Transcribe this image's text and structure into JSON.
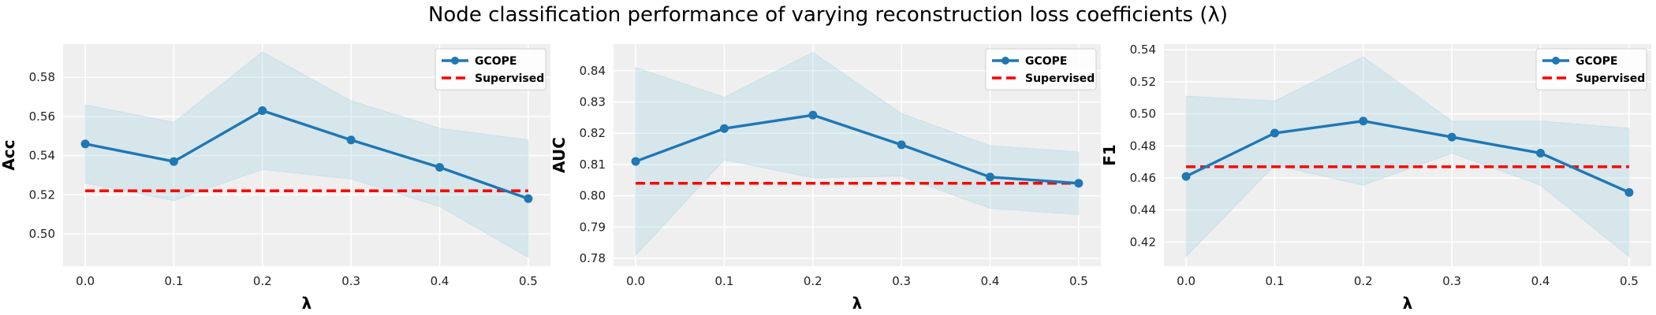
{
  "figure": {
    "title": "Node classification performance of varying reconstruction loss coefficients (λ)"
  },
  "colors": {
    "gcope": "#1f77b4",
    "supervised": "#ff0000",
    "band": "#add8e6",
    "plot_background": "#efefef"
  },
  "chart_data": [
    {
      "type": "line",
      "title": "",
      "xlabel": "λ",
      "ylabel": "Acc",
      "x": [
        0.0,
        0.1,
        0.2,
        0.3,
        0.4,
        0.5
      ],
      "xticks": [
        "0.0",
        "0.1",
        "0.2",
        "0.3",
        "0.4",
        "0.5"
      ],
      "yticks": [
        "0.50",
        "0.52",
        "0.54",
        "0.56",
        "0.58"
      ],
      "xlim": [
        -0.025,
        0.525
      ],
      "ylim": [
        0.4835,
        0.597
      ],
      "grid": true,
      "legend": "top-right",
      "series": [
        {
          "name": "GCOPE",
          "style": "solid line with circle markers",
          "values": [
            0.546,
            0.537,
            0.563,
            0.548,
            0.534,
            0.518
          ],
          "lower": [
            0.526,
            0.517,
            0.533,
            0.528,
            0.514,
            0.488
          ],
          "upper": [
            0.566,
            0.557,
            0.593,
            0.568,
            0.554,
            0.548
          ]
        },
        {
          "name": "Supervised",
          "style": "dashed line",
          "values": [
            0.522,
            0.522,
            0.522,
            0.522,
            0.522,
            0.522
          ]
        }
      ]
    },
    {
      "type": "line",
      "title": "",
      "xlabel": "λ",
      "ylabel": "AUC",
      "x": [
        0.0,
        0.1,
        0.2,
        0.3,
        0.4,
        0.5
      ],
      "xticks": [
        "0.0",
        "0.1",
        "0.2",
        "0.3",
        "0.4",
        "0.5"
      ],
      "yticks": [
        "0.78",
        "0.79",
        "0.80",
        "0.81",
        "0.82",
        "0.83",
        "0.84"
      ],
      "xlim": [
        -0.025,
        0.525
      ],
      "ylim": [
        0.7775,
        0.8485
      ],
      "grid": true,
      "legend": "top-right",
      "series": [
        {
          "name": "GCOPE",
          "style": "solid line with circle markers",
          "values": [
            0.811,
            0.8215,
            0.8258,
            0.8163,
            0.806,
            0.804
          ],
          "lower": [
            0.781,
            0.8115,
            0.8058,
            0.8063,
            0.796,
            0.794
          ],
          "upper": [
            0.841,
            0.8315,
            0.8458,
            0.8263,
            0.816,
            0.814
          ]
        },
        {
          "name": "Supervised",
          "style": "dashed line",
          "values": [
            0.804,
            0.804,
            0.804,
            0.804,
            0.804,
            0.804
          ]
        }
      ]
    },
    {
      "type": "line",
      "title": "",
      "xlabel": "λ",
      "ylabel": "F1",
      "x": [
        0.0,
        0.1,
        0.2,
        0.3,
        0.4,
        0.5
      ],
      "xticks": [
        "0.0",
        "0.1",
        "0.2",
        "0.3",
        "0.4",
        "0.5"
      ],
      "yticks": [
        "0.42",
        "0.44",
        "0.46",
        "0.48",
        "0.50",
        "0.52",
        "0.54"
      ],
      "xlim": [
        -0.025,
        0.525
      ],
      "ylim": [
        0.405,
        0.5435
      ],
      "grid": true,
      "legend": "top-right",
      "series": [
        {
          "name": "GCOPE",
          "style": "solid line with circle markers",
          "values": [
            0.461,
            0.488,
            0.4955,
            0.4855,
            0.4755,
            0.451
          ],
          "lower": [
            0.411,
            0.468,
            0.4555,
            0.4755,
            0.4555,
            0.411
          ],
          "upper": [
            0.511,
            0.508,
            0.5355,
            0.4955,
            0.4955,
            0.491
          ]
        },
        {
          "name": "Supervised",
          "style": "dashed line",
          "values": [
            0.467,
            0.467,
            0.467,
            0.467,
            0.467,
            0.467
          ]
        }
      ]
    }
  ]
}
